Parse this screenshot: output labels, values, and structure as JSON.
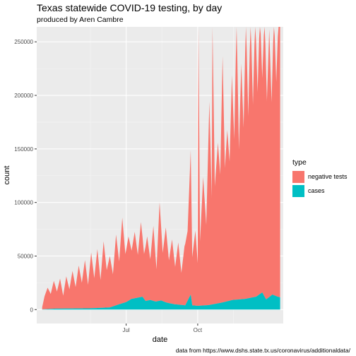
{
  "title": "Texas statewide COVID-19 testing, by day",
  "subtitle": "produced by Aren Cambre",
  "caption": "data from https://www.dshs.state.tx.us/coronavirus/additionaldata/",
  "legend": {
    "title": "type",
    "entries": [
      {
        "label": "negative tests",
        "color": "#F8766D"
      },
      {
        "label": "cases",
        "color": "#00BFC4"
      }
    ]
  },
  "colors": {
    "panel": "#EBEBEB",
    "grid_major": "#FFFFFF",
    "negative": "#F8766D",
    "cases": "#00BFC4"
  },
  "chart_data": {
    "type": "area",
    "stacked": true,
    "xlabel": "date",
    "ylabel": "count",
    "x_ticks": [
      {
        "date": "2020-07-01",
        "label": "Jul"
      },
      {
        "date": "2020-10-01",
        "label": "Oct"
      }
    ],
    "y_ticks": [
      0,
      50000,
      100000,
      150000,
      200000,
      250000
    ],
    "xlim": [
      "2020-03-08",
      "2021-01-19"
    ],
    "ylim": [
      -13000,
      264000
    ],
    "series": [
      {
        "name": "cases",
        "points": [
          [
            "2020-03-15",
            200
          ],
          [
            "2020-04-01",
            900
          ],
          [
            "2020-04-15",
            1000
          ],
          [
            "2020-05-01",
            1100
          ],
          [
            "2020-05-15",
            1200
          ],
          [
            "2020-06-01",
            1700
          ],
          [
            "2020-06-10",
            2000
          ],
          [
            "2020-06-20",
            4500
          ],
          [
            "2020-07-01",
            7000
          ],
          [
            "2020-07-08",
            10000
          ],
          [
            "2020-07-15",
            11000
          ],
          [
            "2020-07-22",
            12000
          ],
          [
            "2020-07-26",
            8000
          ],
          [
            "2020-08-01",
            9000
          ],
          [
            "2020-08-08",
            7500
          ],
          [
            "2020-08-15",
            8500
          ],
          [
            "2020-08-22",
            6500
          ],
          [
            "2020-09-01",
            5000
          ],
          [
            "2020-09-15",
            4000
          ],
          [
            "2020-09-22",
            14000
          ],
          [
            "2020-09-24",
            4000
          ],
          [
            "2020-10-01",
            3500
          ],
          [
            "2020-10-15",
            4200
          ],
          [
            "2020-11-01",
            6500
          ],
          [
            "2020-11-15",
            9000
          ],
          [
            "2020-12-01",
            10000
          ],
          [
            "2020-12-15",
            12000
          ],
          [
            "2020-12-23",
            16000
          ],
          [
            "2020-12-28",
            9500
          ],
          [
            "2021-01-05",
            14000
          ],
          [
            "2021-01-12",
            12000
          ],
          [
            "2021-01-15",
            11500
          ]
        ]
      },
      {
        "name": "negative tests",
        "points": [
          [
            "2020-03-15",
            2000
          ],
          [
            "2020-03-18",
            12000
          ],
          [
            "2020-03-22",
            20000
          ],
          [
            "2020-03-26",
            14000
          ],
          [
            "2020-03-30",
            26000
          ],
          [
            "2020-04-03",
            16000
          ],
          [
            "2020-04-07",
            28000
          ],
          [
            "2020-04-11",
            12000
          ],
          [
            "2020-04-15",
            30000
          ],
          [
            "2020-04-19",
            18000
          ],
          [
            "2020-04-23",
            35000
          ],
          [
            "2020-04-27",
            20000
          ],
          [
            "2020-05-01",
            40000
          ],
          [
            "2020-05-05",
            24000
          ],
          [
            "2020-05-09",
            45000
          ],
          [
            "2020-05-13",
            22000
          ],
          [
            "2020-05-17",
            52000
          ],
          [
            "2020-05-21",
            28000
          ],
          [
            "2020-05-25",
            55000
          ],
          [
            "2020-05-29",
            26000
          ],
          [
            "2020-06-02",
            62000
          ],
          [
            "2020-06-06",
            35000
          ],
          [
            "2020-06-10",
            48000
          ],
          [
            "2020-06-14",
            30000
          ],
          [
            "2020-06-18",
            66000
          ],
          [
            "2020-06-22",
            40000
          ],
          [
            "2020-06-26",
            80000
          ],
          [
            "2020-06-30",
            45000
          ],
          [
            "2020-07-04",
            60000
          ],
          [
            "2020-07-08",
            45000
          ],
          [
            "2020-07-12",
            62000
          ],
          [
            "2020-07-16",
            40000
          ],
          [
            "2020-07-20",
            70000
          ],
          [
            "2020-07-24",
            42000
          ],
          [
            "2020-07-28",
            60000
          ],
          [
            "2020-08-01",
            38000
          ],
          [
            "2020-08-05",
            70000
          ],
          [
            "2020-08-09",
            30000
          ],
          [
            "2020-08-13",
            92000
          ],
          [
            "2020-08-17",
            45000
          ],
          [
            "2020-08-21",
            70000
          ],
          [
            "2020-08-25",
            40000
          ],
          [
            "2020-08-29",
            60000
          ],
          [
            "2020-09-02",
            35000
          ],
          [
            "2020-09-06",
            58000
          ],
          [
            "2020-09-10",
            30000
          ],
          [
            "2020-09-14",
            55000
          ],
          [
            "2020-09-18",
            65000
          ],
          [
            "2020-09-22",
            135000
          ],
          [
            "2020-09-24",
            45000
          ],
          [
            "2020-09-28",
            70000
          ],
          [
            "2020-10-01",
            40000
          ],
          [
            "2020-10-02",
            264000
          ],
          [
            "2020-10-04",
            60000
          ],
          [
            "2020-10-08",
            120000
          ],
          [
            "2020-10-12",
            75000
          ],
          [
            "2020-10-16",
            190000
          ],
          [
            "2020-10-19",
            100000
          ],
          [
            "2020-10-20",
            264000
          ],
          [
            "2020-10-23",
            110000
          ],
          [
            "2020-10-27",
            150000
          ],
          [
            "2020-10-30",
            120000
          ],
          [
            "2020-11-02",
            230000
          ],
          [
            "2020-11-05",
            125000
          ],
          [
            "2020-11-08",
            160000
          ],
          [
            "2020-11-11",
            130000
          ],
          [
            "2020-11-14",
            210000
          ],
          [
            "2020-11-17",
            150000
          ],
          [
            "2020-11-20",
            264000
          ],
          [
            "2020-11-23",
            140000
          ],
          [
            "2020-11-26",
            220000
          ],
          [
            "2020-11-29",
            160000
          ],
          [
            "2020-12-02",
            264000
          ],
          [
            "2020-12-05",
            170000
          ],
          [
            "2020-12-08",
            264000
          ],
          [
            "2020-12-11",
            180000
          ],
          [
            "2020-12-14",
            264000
          ],
          [
            "2020-12-17",
            190000
          ],
          [
            "2020-12-20",
            264000
          ],
          [
            "2020-12-23",
            200000
          ],
          [
            "2020-12-26",
            264000
          ],
          [
            "2020-12-29",
            185000
          ],
          [
            "2021-01-01",
            250000
          ],
          [
            "2021-01-04",
            180000
          ],
          [
            "2021-01-07",
            264000
          ],
          [
            "2021-01-10",
            200000
          ],
          [
            "2021-01-13",
            264000
          ],
          [
            "2021-01-15",
            264000
          ]
        ]
      }
    ],
    "grid": true,
    "legend_position": "right"
  }
}
